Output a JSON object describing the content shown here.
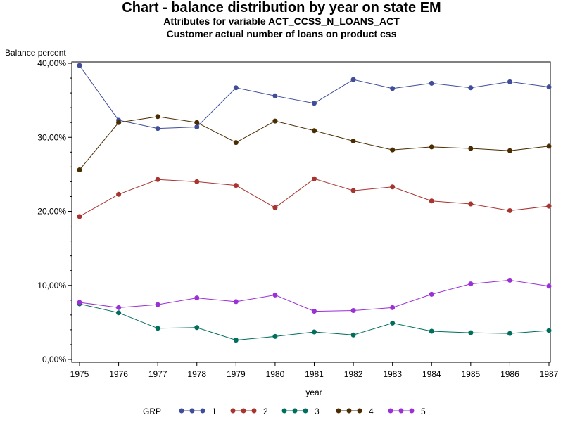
{
  "chart_data": {
    "type": "line",
    "title": "Chart - balance distribution by year on state EM",
    "subtitle": "Attributes for variable ACT_CCSS_N_LOANS_ACT",
    "subtitle2": "Customer actual number of loans on product css",
    "xlabel": "year",
    "ylabel": "Balance percent",
    "legend_title": "GRP",
    "legend_position": "bottom",
    "grid": false,
    "x": [
      "1975",
      "1976",
      "1977",
      "1978",
      "1979",
      "1980",
      "1981",
      "1982",
      "1983",
      "1984",
      "1985",
      "1986",
      "1987"
    ],
    "ylim": [
      0,
      40
    ],
    "yticks": [
      0,
      10,
      20,
      30,
      40
    ],
    "ytick_labels": [
      "0,00%",
      "10,00%",
      "20,00%",
      "30,00%",
      "40,00%"
    ],
    "series": [
      {
        "name": "1",
        "color": "#3f4d9b",
        "values": [
          39.7,
          32.3,
          31.2,
          31.4,
          36.7,
          35.6,
          34.6,
          37.8,
          36.6,
          37.3,
          36.7,
          37.5,
          36.8
        ]
      },
      {
        "name": "2",
        "color": "#a8332f",
        "values": [
          19.3,
          22.3,
          24.3,
          24.0,
          23.5,
          20.5,
          24.4,
          22.8,
          23.3,
          21.4,
          21.0,
          20.1,
          20.7
        ]
      },
      {
        "name": "3",
        "color": "#006e5c",
        "values": [
          7.5,
          6.3,
          4.2,
          4.3,
          2.6,
          3.1,
          3.7,
          3.3,
          4.9,
          3.8,
          3.6,
          3.5,
          3.9
        ]
      },
      {
        "name": "4",
        "color": "#4a2c00",
        "values": [
          25.6,
          32.0,
          32.8,
          32.0,
          29.3,
          32.2,
          30.9,
          29.5,
          28.3,
          28.7,
          28.5,
          28.2,
          28.8
        ]
      },
      {
        "name": "5",
        "color": "#9b30d6",
        "values": [
          7.7,
          7.0,
          7.4,
          8.3,
          7.8,
          8.7,
          6.5,
          6.6,
          7.0,
          8.8,
          10.2,
          10.7,
          9.9
        ]
      }
    ]
  }
}
